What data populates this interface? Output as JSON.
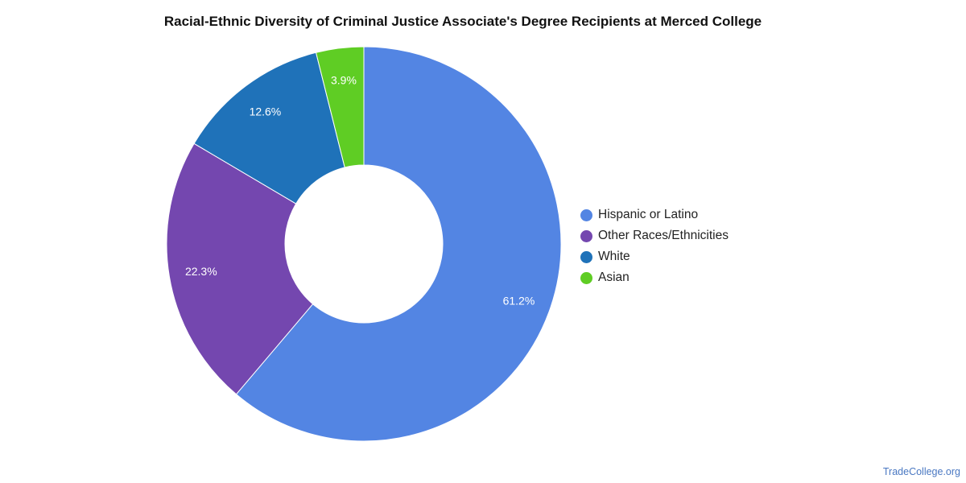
{
  "chart_data": {
    "type": "pie",
    "title": "Racial-Ethnic Diversity of Criminal Justice Associate's Degree Recipients at Merced College",
    "donut": true,
    "legend_position": "right",
    "slices": [
      {
        "label": "Hispanic or Latino",
        "value": 61.2,
        "display": "61.2%",
        "color": "#5385e3"
      },
      {
        "label": "Other Races/Ethnicities",
        "value": 22.3,
        "display": "22.3%",
        "color": "#7447af"
      },
      {
        "label": "White",
        "value": 12.6,
        "display": "12.6%",
        "color": "#1f72b9"
      },
      {
        "label": "Asian",
        "value": 3.9,
        "display": "3.9%",
        "color": "#5fcd24"
      }
    ]
  },
  "watermark": "TradeCollege.org"
}
